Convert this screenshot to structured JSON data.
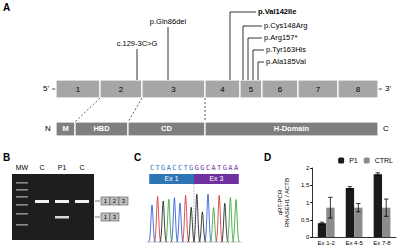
{
  "panels": {
    "a": {
      "label": "A",
      "gene": {
        "five_prime": "5'",
        "three_prime": "3'",
        "exons": [
          "1",
          "2",
          "3",
          "4",
          "5",
          "6",
          "7",
          "8"
        ]
      },
      "protein": {
        "n_term": "N",
        "c_term": "C",
        "domains": [
          "M",
          "HBD",
          "CD",
          "H-Domain"
        ]
      },
      "variants": [
        {
          "label": "c.129-3C>G",
          "highlight": false
        },
        {
          "label": "p.Gln86del",
          "highlight": false
        },
        {
          "label": "p.Val142Ile",
          "highlight": true
        },
        {
          "label": "p.Cys148Arg",
          "highlight": false
        },
        {
          "label": "p.Arg157*",
          "highlight": false
        },
        {
          "label": "p.Tyr163His",
          "highlight": false
        },
        {
          "label": "p.Ala185Val",
          "highlight": false
        }
      ]
    },
    "b": {
      "label": "B",
      "lanes": [
        "MW",
        "C",
        "P1",
        "C"
      ],
      "products": [
        [
          "1",
          "2",
          "3"
        ],
        [
          "1",
          "3"
        ]
      ]
    },
    "c": {
      "label": "C",
      "sequence": [
        {
          "text": "CTGACCTG",
          "exon": "Ex 1",
          "color": "#2e75b6"
        },
        {
          "text": "GGCATGAA",
          "exon": "Ex 3",
          "color": "#7030a0"
        }
      ]
    },
    "d": {
      "label": "D"
    }
  },
  "chart_data": {
    "type": "bar",
    "y_label": "qRT-PCR\nRNASEH1 / ACTB",
    "categories": [
      "Ex 1-2",
      "Ex 4-5",
      "Ex 7-8"
    ],
    "series": [
      {
        "name": "P1",
        "color": "#1a1a1a",
        "values": [
          0.4,
          1.42,
          1.82
        ],
        "errors": [
          0.03,
          0.04,
          0.04
        ]
      },
      {
        "name": "CTRL",
        "color": "#8c8c8c",
        "values": [
          0.85,
          0.85,
          0.85
        ],
        "errors": [
          0.3,
          0.12,
          0.25
        ]
      }
    ],
    "ylim": [
      0,
      2
    ],
    "yticks": [
      0,
      {
        "value": 0.5,
        "label": "0,5"
      },
      1,
      {
        "value": 1.5,
        "label": "1,5"
      },
      2
    ],
    "legend": "top",
    "grid": false
  }
}
